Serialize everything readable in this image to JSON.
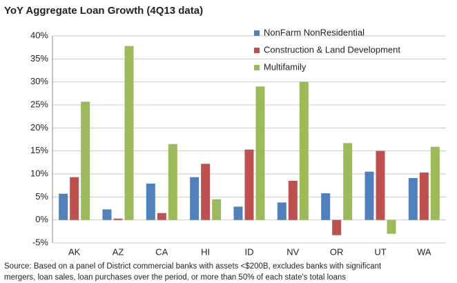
{
  "chart_data": {
    "type": "bar",
    "title": "YoY Aggregate Loan Growth (4Q13 data)",
    "categories": [
      "AK",
      "AZ",
      "CA",
      "HI",
      "ID",
      "NV",
      "OR",
      "UT",
      "WA"
    ],
    "series": [
      {
        "name": "NonFarm NonResidential",
        "color": "#4f81bd",
        "values": [
          5.7,
          2.3,
          7.9,
          9.3,
          2.9,
          3.8,
          5.8,
          10.5,
          9.1
        ]
      },
      {
        "name": "Construction & Land Development",
        "color": "#c0504d",
        "values": [
          9.3,
          0.3,
          1.5,
          12.2,
          15.3,
          8.5,
          -3.3,
          15.0,
          10.3
        ]
      },
      {
        "name": "Multifamily",
        "color": "#9bbb59",
        "values": [
          25.7,
          37.8,
          16.5,
          4.5,
          29.0,
          30.0,
          16.7,
          -3.0,
          15.9
        ]
      }
    ],
    "ylim": [
      -5,
      40
    ],
    "yticks": [
      {
        "value": -5,
        "label": "-5%"
      },
      {
        "value": 0,
        "label": "0%"
      },
      {
        "value": 5,
        "label": "5%"
      },
      {
        "value": 10,
        "label": "10%"
      },
      {
        "value": 15,
        "label": "15%"
      },
      {
        "value": 20,
        "label": "20%"
      },
      {
        "value": 25,
        "label": "25%"
      },
      {
        "value": 30,
        "label": "30%"
      },
      {
        "value": 35,
        "label": "35%"
      },
      {
        "value": 40,
        "label": "40%"
      }
    ],
    "grid": true,
    "legend": "upper right",
    "source": [
      "Source: Based on a panel of District commercial banks with assets <$200B, excludes banks with significant",
      "mergers, loan sales, loan purchases over the period, or more than 50% of each state's total loans"
    ]
  }
}
